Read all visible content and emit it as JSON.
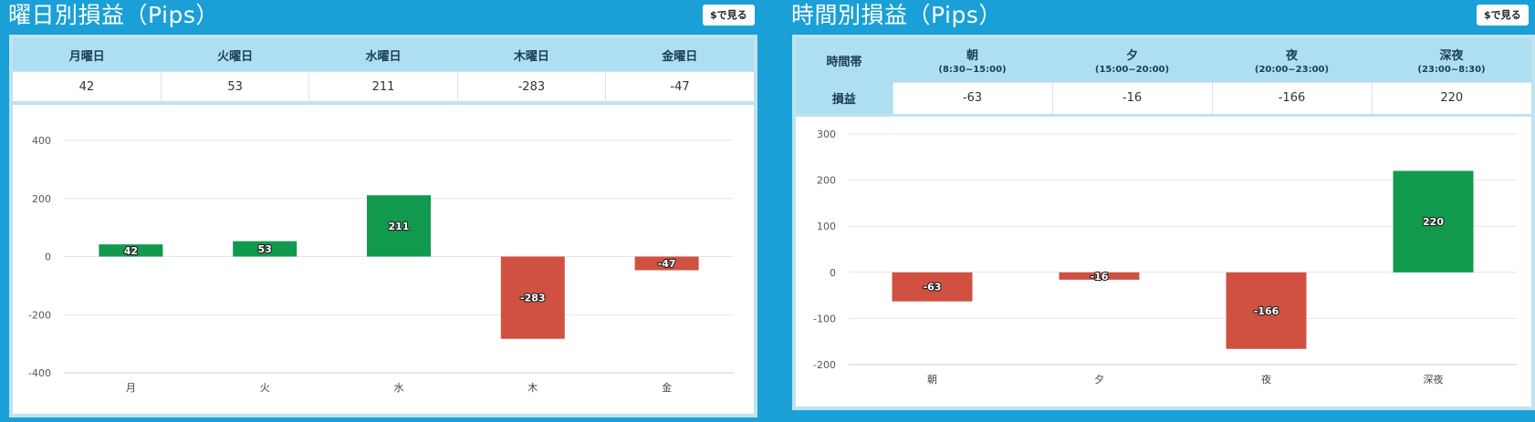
{
  "panels": [
    {
      "title": "曜日別損益（Pips）",
      "button_label": "$で見る",
      "headers": [
        "月曜日",
        "火曜日",
        "水曜日",
        "木曜日",
        "金曜日"
      ],
      "values": [
        "42",
        "53",
        "211",
        "-283",
        "-47"
      ]
    },
    {
      "title": "時間別損益（Pips）",
      "button_label": "$で見る",
      "row_header_time": "時間帯",
      "row_header_pl": "損益",
      "headers": [
        {
          "label": "朝",
          "sub": "(8:30~15:00)"
        },
        {
          "label": "夕",
          "sub": "(15:00~20:00)"
        },
        {
          "label": "夜",
          "sub": "(20:00~23:00)"
        },
        {
          "label": "深夜",
          "sub": "(23:00~8:30)"
        }
      ],
      "values": [
        "-63",
        "-16",
        "-166",
        "220"
      ]
    }
  ],
  "colors": {
    "positive": "#11994d",
    "negative": "#d05141",
    "background": "#1aa0d6"
  },
  "chart_data": [
    {
      "type": "bar",
      "categories": [
        "月",
        "火",
        "水",
        "木",
        "金"
      ],
      "values": [
        42,
        53,
        211,
        -283,
        -47
      ],
      "title": "曜日別損益（Pips）",
      "ylim": [
        -400,
        400
      ],
      "yticks": [
        400,
        200,
        0,
        -200,
        -400
      ],
      "grid": true,
      "data_labels": true
    },
    {
      "type": "bar",
      "categories": [
        "朝",
        "夕",
        "夜",
        "深夜"
      ],
      "values": [
        -63,
        -16,
        -166,
        220
      ],
      "title": "時間別損益（Pips）",
      "ylim": [
        -200,
        300
      ],
      "yticks": [
        300,
        200,
        100,
        0,
        -100,
        -200
      ],
      "grid": true,
      "data_labels": true
    }
  ]
}
